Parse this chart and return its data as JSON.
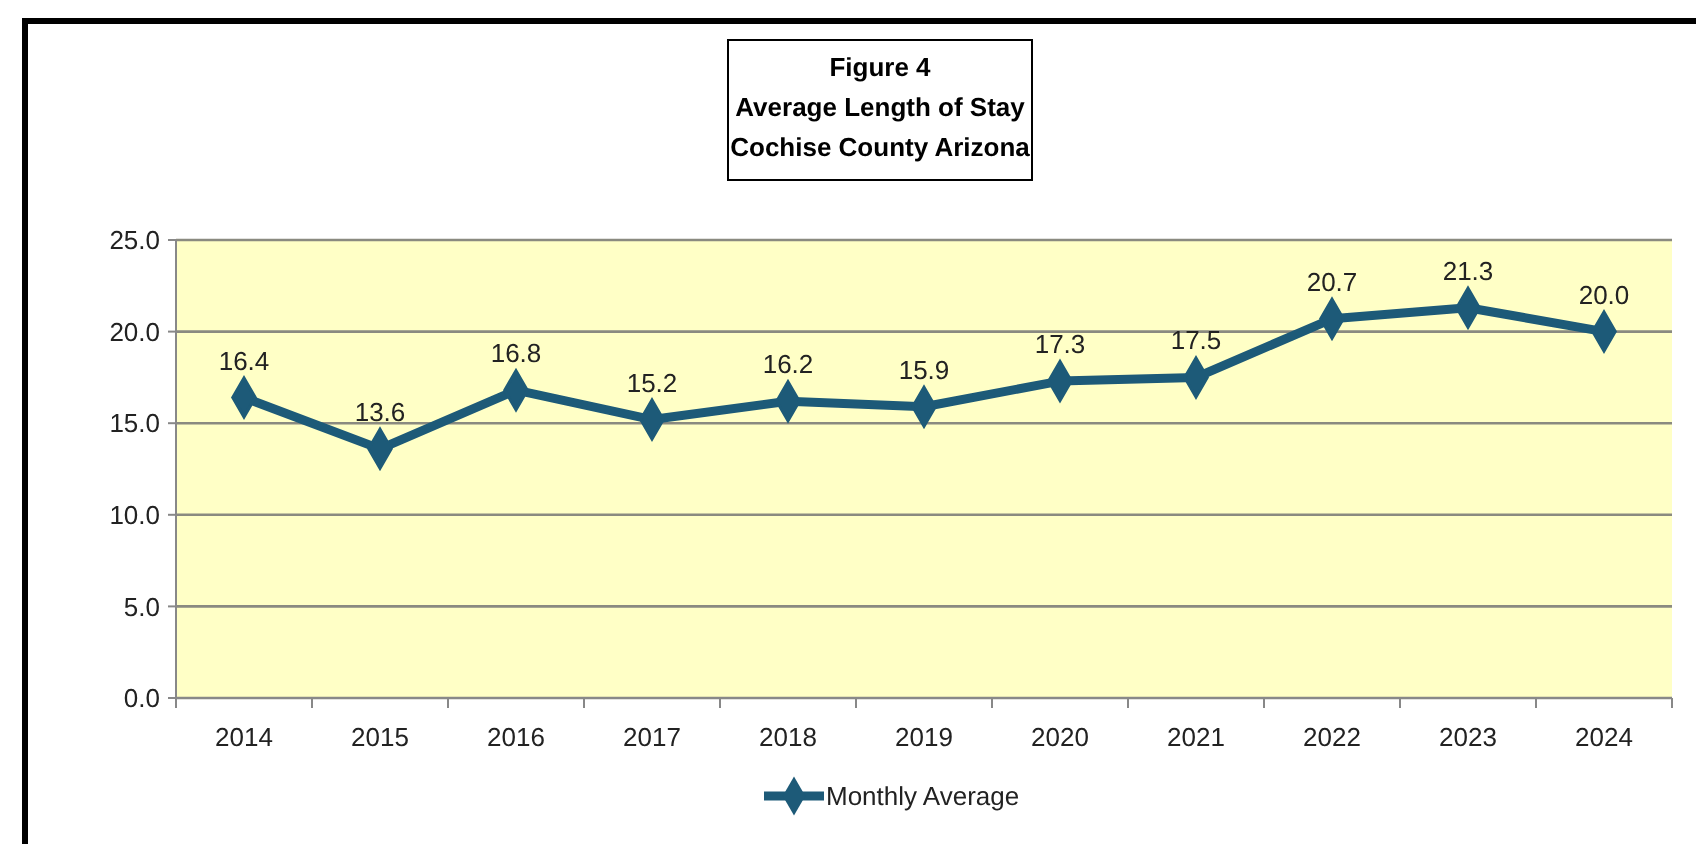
{
  "chart_data": {
    "type": "line",
    "title": "Figure 4\nAverage Length of Stay\nCochise County Arizona",
    "categories": [
      "2014",
      "2015",
      "2016",
      "2017",
      "2018",
      "2019",
      "2020",
      "2021",
      "2022",
      "2023",
      "2024"
    ],
    "series": [
      {
        "name": "Monthly Average",
        "color": "#1d5a78",
        "values": [
          16.4,
          13.6,
          16.8,
          15.2,
          16.2,
          15.9,
          17.3,
          17.5,
          20.7,
          21.3,
          20.0
        ],
        "value_labels": [
          "16.4",
          "13.6",
          "16.8",
          "15.2",
          "16.2",
          "15.9",
          "17.3",
          "17.5",
          "20.7",
          "21.3",
          "20.0"
        ]
      }
    ],
    "ylim": [
      0,
      25
    ],
    "yticks": [
      {
        "value": 0,
        "label": "0.0"
      },
      {
        "value": 5,
        "label": "5.0"
      },
      {
        "value": 10,
        "label": "10.0"
      },
      {
        "value": 15,
        "label": "15.0"
      },
      {
        "value": 20,
        "label": "20.0"
      },
      {
        "value": 25,
        "label": "25.0"
      }
    ],
    "grid": "y",
    "legend": "bottom",
    "marker": "diamond",
    "line_style": "solid"
  }
}
